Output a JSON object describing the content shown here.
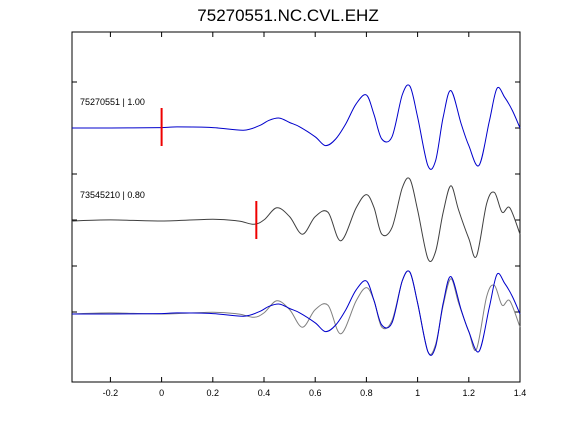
{
  "chart_data": {
    "type": "line",
    "title": "75270551.NC.CVL.EHZ",
    "xlabel": "",
    "ylabel": "",
    "xlim": [
      -0.35,
      1.4
    ],
    "x_ticks": [
      -0.2,
      0,
      0.2,
      0.4,
      0.6,
      0.8,
      1,
      1.2,
      1.4
    ],
    "x_tick_labels": [
      "-0.2",
      "0",
      "0.2",
      "0.4",
      "0.6",
      "0.8",
      "1",
      "1.2",
      "1.4"
    ],
    "y_unlabeled_ticks": 6,
    "grid": false,
    "traces": [
      {
        "label": "75270551 | 1.00",
        "color": "#0000cc",
        "baseline_row": 1,
        "pick_time": 0.0
      },
      {
        "label": "73545210 | 0.80",
        "color": "#404040",
        "baseline_row": 2,
        "pick_time": 0.37
      },
      {
        "label": "",
        "color": "#0000cc",
        "baseline_row": 3,
        "overlay": true
      },
      {
        "label": "",
        "color": "#808080",
        "baseline_row": 3,
        "overlay": true
      }
    ],
    "pick_color": "#ee0000",
    "series": [
      {
        "x": [
          -0.35,
          -0.2,
          0,
          0.06,
          0.2,
          0.32,
          0.38,
          0.42,
          0.46,
          0.5,
          0.54,
          0.6,
          0.64,
          0.68,
          0.72,
          0.76,
          0.8,
          0.83,
          0.86,
          0.9,
          0.94,
          0.97,
          1.0,
          1.04,
          1.07,
          1.1,
          1.13,
          1.17,
          1.2,
          1.24,
          1.28,
          1.31,
          1.34,
          1.37,
          1.4
        ],
        "y": [
          0,
          0,
          0.02,
          0.05,
          0.02,
          -0.1,
          0.1,
          0.35,
          0.45,
          0.25,
          0.05,
          -0.4,
          -0.8,
          -0.5,
          0.2,
          1.1,
          1.5,
          0.6,
          -0.5,
          -0.4,
          1.5,
          1.9,
          0.5,
          -1.7,
          -1.5,
          0.5,
          1.7,
          0.2,
          -0.8,
          -1.7,
          0.3,
          1.8,
          1.4,
          0.8,
          0
        ]
      },
      {
        "x": [
          -0.35,
          -0.2,
          0,
          0.2,
          0.3,
          0.36,
          0.4,
          0.45,
          0.5,
          0.55,
          0.6,
          0.65,
          0.7,
          0.76,
          0.8,
          0.83,
          0.86,
          0.9,
          0.94,
          0.97,
          1.0,
          1.04,
          1.07,
          1.1,
          1.13,
          1.16,
          1.2,
          1.23,
          1.27,
          1.3,
          1.33,
          1.36,
          1.4
        ],
        "y": [
          0,
          0.05,
          0,
          0.08,
          0,
          -0.15,
          0.05,
          0.6,
          0.2,
          -0.6,
          0.2,
          0.4,
          -0.9,
          0.6,
          1.2,
          0.6,
          -0.6,
          -0.3,
          1.5,
          1.9,
          0.5,
          -1.7,
          -1.4,
          0.4,
          1.6,
          0.5,
          -0.8,
          -1.6,
          0.8,
          1.3,
          0.4,
          0.6,
          -0.6
        ]
      },
      {
        "x": [
          -0.35,
          -0.2,
          0,
          0.06,
          0.2,
          0.32,
          0.38,
          0.42,
          0.46,
          0.5,
          0.54,
          0.6,
          0.64,
          0.68,
          0.72,
          0.76,
          0.8,
          0.83,
          0.86,
          0.9,
          0.94,
          0.97,
          1.0,
          1.04,
          1.07,
          1.1,
          1.13,
          1.17,
          1.2,
          1.24,
          1.28,
          1.31,
          1.34,
          1.37,
          1.4
        ],
        "y": [
          0,
          0,
          0.02,
          0.05,
          0.02,
          -0.1,
          0.1,
          0.35,
          0.45,
          0.25,
          0.05,
          -0.4,
          -0.8,
          -0.5,
          0.2,
          1.1,
          1.5,
          0.6,
          -0.5,
          -0.4,
          1.5,
          1.9,
          0.5,
          -1.7,
          -1.5,
          0.5,
          1.7,
          0.2,
          -0.8,
          -1.7,
          0.3,
          1.8,
          1.4,
          0.8,
          0
        ]
      },
      {
        "x": [
          -0.35,
          -0.2,
          0,
          0.2,
          0.3,
          0.36,
          0.4,
          0.45,
          0.5,
          0.55,
          0.6,
          0.65,
          0.7,
          0.76,
          0.8,
          0.83,
          0.86,
          0.9,
          0.94,
          0.97,
          1.0,
          1.04,
          1.07,
          1.1,
          1.13,
          1.16,
          1.2,
          1.23,
          1.27,
          1.3,
          1.33,
          1.36,
          1.4
        ],
        "y": [
          0,
          0.05,
          0,
          0.08,
          0,
          -0.15,
          0.05,
          0.6,
          0.2,
          -0.6,
          0.2,
          0.4,
          -0.9,
          0.6,
          1.2,
          0.6,
          -0.6,
          -0.3,
          1.5,
          1.9,
          0.5,
          -1.7,
          -1.4,
          0.4,
          1.6,
          0.5,
          -0.8,
          -1.6,
          0.8,
          1.3,
          0.4,
          0.6,
          -0.6
        ]
      }
    ]
  }
}
